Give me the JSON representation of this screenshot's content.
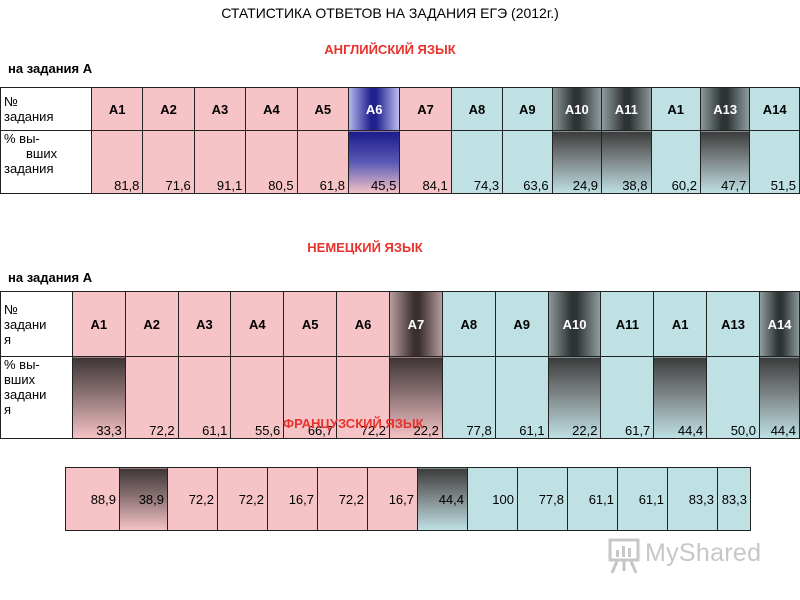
{
  "title": "СТАТИСТИКА ОТВЕТОВ НА ЗАДАНИЯ ЕГЭ (2012г.)",
  "section1": {
    "title": "АНГЛИЙСКИЙ ЯЗЫК",
    "subtitle": "на задания А",
    "row1_label": [
      "№",
      "задания"
    ],
    "row2_label": [
      "% вы-",
      "вших",
      "задания"
    ],
    "headers": [
      "А1",
      "А2",
      "А3",
      "А4",
      "А5",
      "А6",
      "А7",
      "А8",
      "А9",
      "А10",
      "А11",
      "А1",
      "А13",
      "А14"
    ],
    "values": [
      "81,8",
      "71,6",
      "91,1",
      "80,5",
      "61,8",
      "45,5",
      "84,1",
      "74,3",
      "63,6",
      "24,9",
      "38,8",
      "60,2",
      "47,7",
      "51,5"
    ]
  },
  "section2": {
    "title": "НЕМЕЦКИЙ ЯЗЫК",
    "subtitle": "на задания А",
    "row1_label": [
      "№",
      "задани",
      "я"
    ],
    "row2_label": [
      "% вы-",
      "вших",
      "задани",
      "я"
    ],
    "headers": [
      "А1",
      "А2",
      "А3",
      "А4",
      "А5",
      "А6",
      "А7",
      "А8",
      "А9",
      "А10",
      "А11",
      "А1",
      "А13",
      "А14"
    ],
    "values": [
      "33,3",
      "72,2",
      "61,1",
      "55,6",
      "66,7",
      "72,2",
      "22,2",
      "77,8",
      "61,1",
      "22,2",
      "61,7",
      "44,4",
      "50,0",
      "44,4"
    ]
  },
  "section3": {
    "title": "ФРАНЦУЗСКИЙ ЯЗЫК",
    "values": [
      "88,9",
      "38,9",
      "72,2",
      "72,2",
      "16,7",
      "72,2",
      "16,7",
      "44,4",
      "100",
      "77,8",
      "61,1",
      "61,1",
      "83,3",
      "83,3"
    ]
  },
  "watermark": "MyShared"
}
